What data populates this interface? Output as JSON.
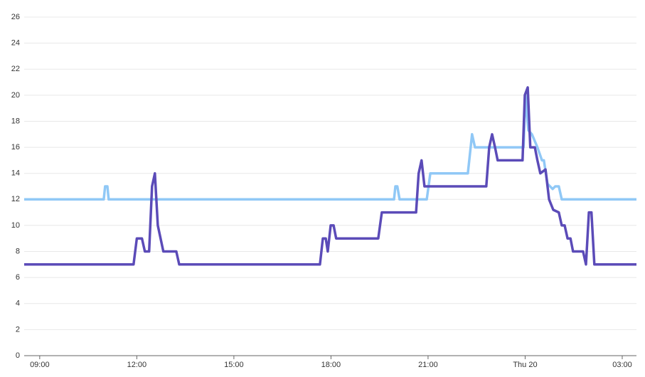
{
  "chart_data": {
    "type": "line",
    "ylim": [
      0,
      26
    ],
    "yticks": [
      0,
      2,
      4,
      6,
      8,
      10,
      12,
      14,
      16,
      18,
      20,
      22,
      24,
      26
    ],
    "xlim": [
      8.52,
      27.44
    ],
    "xticks": [
      {
        "value": 9,
        "label": "09:00"
      },
      {
        "value": 12,
        "label": "12:00"
      },
      {
        "value": 15,
        "label": "15:00"
      },
      {
        "value": 18,
        "label": "18:00"
      },
      {
        "value": 21,
        "label": "21:00"
      },
      {
        "value": 24,
        "label": "Thu 20"
      },
      {
        "value": 27,
        "label": "03:00"
      }
    ],
    "grid": true,
    "series": [
      {
        "color": "#90c8f6",
        "x": [
          8.52,
          10.98,
          11.02,
          11.09,
          11.13,
          19.95,
          19.99,
          20.05,
          20.12,
          20.96,
          21.07,
          22.23,
          22.36,
          22.45,
          23.95,
          24.01,
          24.1,
          24.21,
          24.38,
          24.52,
          24.58,
          24.69,
          24.85,
          24.93,
          25.04,
          25.13,
          27.44
        ],
        "values": [
          12,
          12,
          13,
          13,
          12,
          12,
          13,
          13,
          12,
          12,
          14,
          14,
          17,
          16,
          16,
          20,
          17.3,
          17,
          16,
          15,
          15,
          13.2,
          12.8,
          13,
          13,
          12,
          12
        ]
      },
      {
        "color": "#5b4bb8",
        "x": [
          8.52,
          11.9,
          12.0,
          12.16,
          12.25,
          12.38,
          12.47,
          12.56,
          12.65,
          12.82,
          13.22,
          13.31,
          17.66,
          17.75,
          17.84,
          17.9,
          17.99,
          18.08,
          18.16,
          19.46,
          19.57,
          20.63,
          20.71,
          20.8,
          20.89,
          22.8,
          22.89,
          22.98,
          23.07,
          23.15,
          23.92,
          23.99,
          24.08,
          24.16,
          24.3,
          24.38,
          24.47,
          24.63,
          24.74,
          24.87,
          25.04,
          25.13,
          25.22,
          25.31,
          25.4,
          25.48,
          25.79,
          25.88,
          25.97,
          26.05,
          26.14,
          27.44
        ],
        "values": [
          7,
          7,
          9,
          9,
          8,
          8,
          13,
          14,
          10,
          8,
          8,
          7,
          7,
          9,
          9,
          8,
          10,
          10,
          9,
          9,
          11,
          11,
          14,
          15,
          13,
          13,
          16,
          17,
          16,
          15,
          15,
          20,
          20.6,
          16,
          16,
          15,
          14,
          14.3,
          12,
          11.2,
          11,
          10,
          10,
          9,
          9,
          8,
          8,
          7,
          11,
          11,
          7,
          7
        ]
      }
    ]
  }
}
